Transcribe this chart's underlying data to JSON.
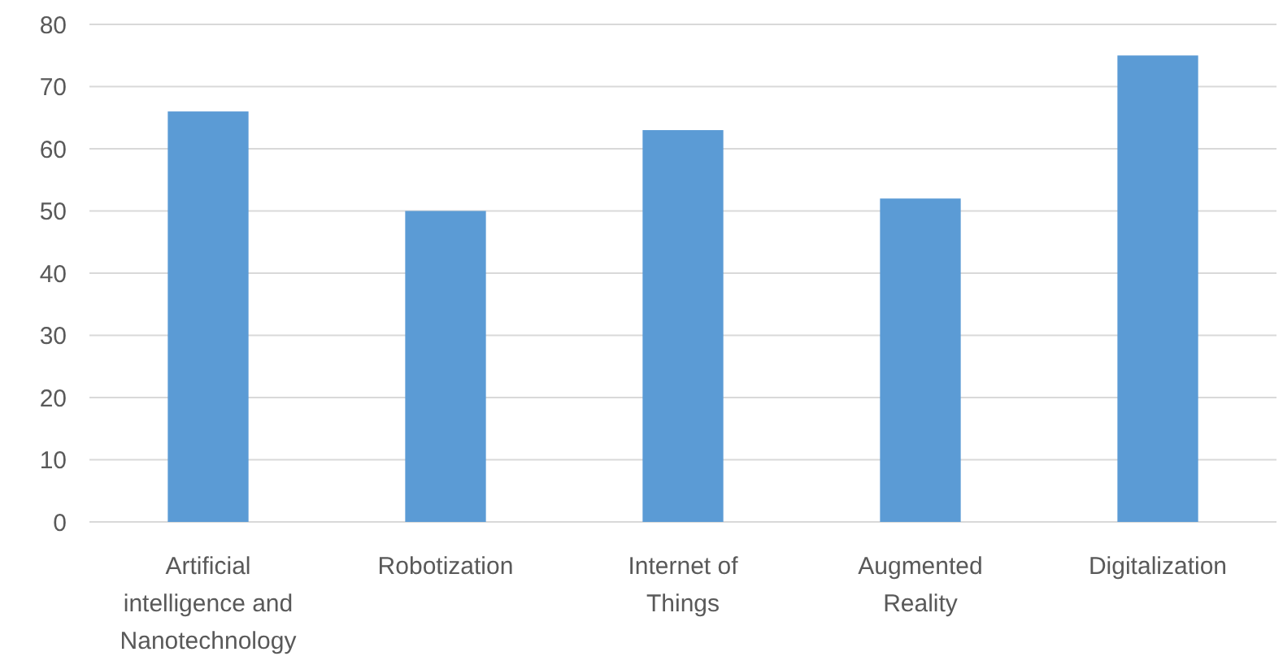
{
  "chart_data": {
    "type": "bar",
    "categories": [
      "Artificial intelligence and Nanotechnology",
      "Robotization",
      "Internet of Things",
      "Augmented Reality",
      "Digitalization"
    ],
    "values": [
      66,
      50,
      63,
      52,
      75
    ],
    "color": "#5b9bd5",
    "ylim": [
      0,
      80
    ],
    "yticks": [
      0,
      10,
      20,
      30,
      40,
      50,
      60,
      70,
      80
    ],
    "grid": "y"
  }
}
